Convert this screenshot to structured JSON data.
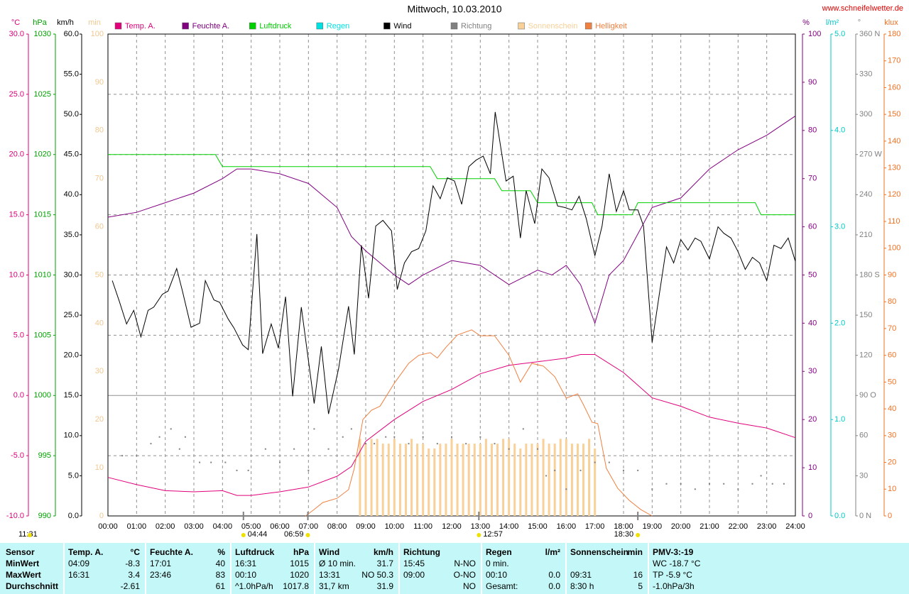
{
  "chart_data": {
    "type": "line",
    "title": "Mittwoch, 10.03.2010",
    "source": "www.schneifelwetter.de",
    "xlim": [
      0,
      24
    ],
    "xticks": [
      {
        "value": 0,
        "label": "00:00"
      },
      {
        "value": 1,
        "label": "01:00"
      },
      {
        "value": 2,
        "label": "02:00"
      },
      {
        "value": 3,
        "label": "03:00"
      },
      {
        "value": 4,
        "label": "04:00"
      },
      {
        "value": 5,
        "label": "05:00"
      },
      {
        "value": 6,
        "label": "06:00"
      },
      {
        "value": 7,
        "label": "07:00"
      },
      {
        "value": 8,
        "label": "08:00"
      },
      {
        "value": 9,
        "label": "09:00"
      },
      {
        "value": 10,
        "label": "10:00"
      },
      {
        "value": 11,
        "label": "11:00"
      },
      {
        "value": 12,
        "label": "12:00"
      },
      {
        "value": 13,
        "label": "13:00"
      },
      {
        "value": 14,
        "label": "14:00"
      },
      {
        "value": 15,
        "label": "15:00"
      },
      {
        "value": 16,
        "label": "16:00"
      },
      {
        "value": 17,
        "label": "17:00"
      },
      {
        "value": 18,
        "label": "18:00"
      },
      {
        "value": 19,
        "label": "19:00"
      },
      {
        "value": 20,
        "label": "20:00"
      },
      {
        "value": 21,
        "label": "21:00"
      },
      {
        "value": 22,
        "label": "22:00"
      },
      {
        "value": 23,
        "label": "23:00"
      },
      {
        "value": 24,
        "label": "24:00"
      }
    ],
    "grid": true,
    "axes": [
      {
        "unit": "°C",
        "color": "#e0007a",
        "lim": [
          -10,
          30
        ],
        "ticks": [
          {
            "value": -10,
            "label": "-10.0"
          },
          {
            "value": -5,
            "label": "-5.0"
          },
          {
            "value": 0,
            "label": "0.0"
          },
          {
            "value": 5,
            "label": "5.0"
          },
          {
            "value": 10,
            "label": "10.0"
          },
          {
            "value": 15,
            "label": "15.0"
          },
          {
            "value": 20,
            "label": "20.0"
          },
          {
            "value": 25,
            "label": "25.0"
          },
          {
            "value": 30,
            "label": "30.0"
          }
        ]
      },
      {
        "unit": "hPa",
        "color": "#00a000",
        "lim": [
          990,
          1030
        ],
        "ticks": [
          990,
          995,
          1000,
          1005,
          1010,
          1015,
          1020,
          1025,
          1030
        ]
      },
      {
        "unit": "km/h",
        "color": "#000000",
        "lim": [
          0,
          60
        ],
        "ticks": [
          {
            "value": 0,
            "label": "0.0"
          },
          {
            "value": 5,
            "label": "5.0"
          },
          {
            "value": 10,
            "label": "10.0"
          },
          {
            "value": 15,
            "label": "15.0"
          },
          {
            "value": 20,
            "label": "20.0"
          },
          {
            "value": 25,
            "label": "25.0"
          },
          {
            "value": 30,
            "label": "30.0"
          },
          {
            "value": 35,
            "label": "35.0"
          },
          {
            "value": 40,
            "label": "40.0"
          },
          {
            "value": 45,
            "label": "45.0"
          },
          {
            "value": 50,
            "label": "50.0"
          },
          {
            "value": 55,
            "label": "55.0"
          },
          {
            "value": 60,
            "label": "60.0"
          }
        ]
      },
      {
        "unit": "min",
        "color": "#f0c890",
        "lim": [
          0,
          100
        ],
        "ticks": [
          0,
          10,
          20,
          30,
          40,
          50,
          60,
          70,
          80,
          90,
          100
        ]
      },
      {
        "unit": "%",
        "color": "#800080",
        "lim": [
          0,
          100
        ],
        "ticks": [
          0,
          10,
          20,
          30,
          40,
          50,
          60,
          70,
          80,
          90,
          100
        ]
      },
      {
        "unit": "l/m²",
        "color": "#00c8c8",
        "lim": [
          0,
          5
        ],
        "ticks": [
          {
            "value": 0,
            "label": "0.0"
          },
          {
            "value": 1,
            "label": "1.0"
          },
          {
            "value": 2,
            "label": "2.0"
          },
          {
            "value": 3,
            "label": "3.0"
          },
          {
            "value": 4,
            "label": "4.0"
          },
          {
            "value": 5,
            "label": "5.0"
          }
        ]
      },
      {
        "unit": "°",
        "color": "#808080",
        "lim": [
          0,
          360
        ],
        "ticks": [
          {
            "value": 0,
            "label": "0 N"
          },
          30,
          60,
          {
            "value": 90,
            "label": "90 O"
          },
          120,
          150,
          {
            "value": 180,
            "label": "180 S"
          },
          210,
          240,
          {
            "value": 270,
            "label": "270 W"
          },
          300,
          330,
          {
            "value": 360,
            "label": "360 N"
          }
        ]
      },
      {
        "unit": "klux",
        "color": "#f07020",
        "lim": [
          0,
          180
        ],
        "ticks": [
          0,
          10,
          20,
          30,
          40,
          50,
          60,
          70,
          80,
          90,
          100,
          110,
          120,
          130,
          140,
          150,
          160,
          170,
          180
        ]
      }
    ],
    "series": [
      {
        "name": "Temp. A.",
        "color": "#e0007a",
        "type": "line",
        "axis": "°C",
        "x": [
          0,
          1,
          2,
          3,
          4,
          4.5,
          5,
          6,
          7,
          8,
          8.5,
          9,
          10,
          11,
          12,
          13,
          14,
          15,
          16,
          16.5,
          17,
          18,
          19,
          20,
          21,
          22,
          23,
          24
        ],
        "values": [
          -6.8,
          -7.4,
          -7.9,
          -8.0,
          -7.9,
          -8.3,
          -8.3,
          -8.0,
          -7.6,
          -6.7,
          -5.9,
          -3.8,
          -2.0,
          -0.5,
          0.5,
          1.8,
          2.5,
          2.8,
          3.1,
          3.4,
          3.4,
          1.9,
          -0.2,
          -0.9,
          -1.8,
          -2.3,
          -2.7,
          -3.5
        ]
      },
      {
        "name": "Feuchte A.",
        "color": "#800080",
        "type": "line",
        "axis": "%",
        "x": [
          0,
          1,
          2,
          3,
          4,
          4.5,
          5,
          6,
          7,
          8,
          8.5,
          9,
          10,
          10.5,
          11,
          12,
          13,
          14,
          15,
          15.5,
          16,
          16.5,
          17,
          17.5,
          18,
          19,
          20,
          21,
          22,
          23,
          24
        ],
        "values": [
          62,
          63,
          65,
          67,
          70,
          72,
          72,
          71,
          69,
          64,
          58,
          55,
          50,
          48,
          50,
          53,
          52,
          48,
          51,
          50,
          52,
          48,
          40,
          50,
          53,
          64,
          66,
          72,
          76,
          79,
          83
        ]
      },
      {
        "name": "Luftdruck",
        "color": "#00d000",
        "type": "line",
        "axis": "hPa",
        "x": [
          0,
          3.75,
          4,
          11.25,
          11.5,
          13.5,
          13.75,
          14.75,
          15,
          16.9,
          17.1,
          18.3,
          18.5,
          22.6,
          22.8,
          24
        ],
        "values": [
          1020,
          1020,
          1019,
          1019,
          1018,
          1018,
          1017,
          1017,
          1016,
          1016,
          1015,
          1015,
          1016,
          1016,
          1015,
          1015
        ]
      },
      {
        "name": "Regen",
        "color": "#00e0e0",
        "type": "line",
        "axis": "l/m²",
        "x": [],
        "values": []
      },
      {
        "name": "Wind",
        "color": "#000000",
        "type": "line",
        "axis": "km/h",
        "x": [
          0.15,
          0.4,
          0.65,
          0.9,
          1.15,
          1.4,
          1.6,
          1.9,
          2.1,
          2.4,
          2.6,
          2.9,
          3.2,
          3.4,
          3.7,
          3.9,
          4.2,
          4.4,
          4.7,
          4.9,
          5.2,
          5.4,
          5.7,
          5.95,
          6.2,
          6.45,
          6.75,
          7.2,
          7.45,
          7.7,
          8.05,
          8.4,
          8.6,
          8.85,
          9.1,
          9.35,
          9.6,
          9.9,
          10.1,
          10.35,
          10.6,
          10.85,
          11.1,
          11.35,
          11.6,
          11.85,
          12.1,
          12.35,
          12.6,
          12.85,
          13.1,
          13.35,
          13.52,
          13.9,
          14.15,
          14.4,
          14.6,
          14.9,
          15.15,
          15.4,
          15.7,
          15.95,
          16.2,
          16.45,
          16.7,
          17.0,
          17.25,
          17.5,
          17.75,
          18.0,
          18.2,
          18.5,
          18.7,
          19.0,
          19.25,
          19.5,
          19.75,
          20.0,
          20.25,
          20.5,
          20.7,
          21.0,
          21.3,
          21.5,
          21.75,
          22.0,
          22.25,
          22.5,
          22.75,
          23.0,
          23.25,
          23.5,
          23.75,
          24.0
        ],
        "values": [
          29.3,
          26.7,
          23.9,
          25.6,
          22.3,
          25.6,
          26.0,
          27.6,
          28.0,
          30.8,
          28.0,
          23.5,
          24.0,
          29.3,
          26.9,
          26.6,
          24.5,
          23.4,
          21.3,
          20.7,
          35.1,
          20.2,
          23.9,
          20.9,
          27.3,
          14.9,
          26.0,
          14.0,
          21.1,
          12.7,
          18.3,
          26.1,
          20.1,
          33.7,
          27.1,
          36.1,
          36.8,
          35.5,
          28.2,
          31.5,
          32.9,
          33.3,
          35.5,
          41.1,
          39.5,
          42.1,
          41.7,
          38.8,
          43.5,
          44.3,
          44.8,
          42.6,
          50.3,
          41.7,
          42.3,
          34.6,
          40.5,
          36.4,
          43.2,
          42.1,
          38.6,
          38.4,
          38.1,
          39.8,
          37.0,
          32.4,
          36.1,
          42.6,
          37.9,
          40.5,
          38.1,
          38.1,
          36.1,
          21.6,
          27.6,
          33.5,
          31.5,
          34.4,
          33.1,
          34.6,
          34.2,
          32.0,
          36.0,
          35.2,
          34.6,
          32.9,
          30.7,
          32.2,
          31.5,
          29.3,
          33.7,
          33.3,
          34.6,
          31.7
        ]
      },
      {
        "name": "Richtung",
        "color": "#808080",
        "type": "scatter",
        "axis": "°",
        "x": [
          0.5,
          1,
          1.5,
          1.8,
          2.2,
          2.5,
          2.7,
          3.2,
          3.6,
          4.1,
          4.5,
          4.9,
          5.5,
          6.0,
          6.5,
          7.0,
          7.2,
          7.7,
          8.2,
          8.5,
          9.0,
          9.3,
          9.7,
          10.0,
          10.5,
          11,
          11.5,
          12,
          12.5,
          13,
          13.5,
          14,
          14.5,
          15,
          15.3,
          15.6,
          16,
          16.5,
          17,
          17.5,
          18,
          18.5,
          19,
          19.5,
          20,
          20.5,
          21,
          21.5,
          22,
          22.5,
          22.8,
          23.2,
          23.6
        ],
        "values": [
          45,
          45,
          54,
          59,
          65,
          50,
          59,
          40,
          40,
          40,
          34,
          34,
          50,
          40,
          50,
          34,
          65,
          50,
          59,
          65,
          54,
          54,
          59,
          59,
          54,
          59,
          54,
          59,
          54,
          59,
          54,
          50,
          65,
          50,
          30,
          34,
          20,
          34,
          40,
          40,
          34,
          34,
          20,
          24,
          24,
          20,
          24,
          24,
          20,
          24,
          30,
          24,
          24
        ]
      },
      {
        "name": "Sonnenschein",
        "color": "#f8d098",
        "type": "bar",
        "axis": "min",
        "x": [
          8.8,
          9.0,
          9.2,
          9.4,
          9.6,
          9.8,
          10.0,
          10.2,
          10.4,
          10.6,
          10.8,
          11.0,
          11.2,
          11.4,
          11.6,
          11.8,
          12.0,
          12.2,
          12.4,
          12.6,
          12.8,
          13.0,
          13.2,
          13.4,
          13.6,
          13.8,
          14.0,
          14.2,
          14.4,
          14.6,
          14.8,
          15.0,
          15.2,
          15.4,
          15.6,
          15.8,
          16.0,
          16.2,
          16.4,
          16.6,
          16.8,
          17.0
        ],
        "values": [
          16,
          15,
          16,
          16,
          15,
          15,
          16,
          15,
          15,
          16,
          15,
          15,
          14,
          14,
          15,
          15,
          16,
          15,
          15,
          15,
          15,
          15,
          16,
          15,
          15,
          16,
          16,
          15,
          14,
          15,
          15,
          15,
          16,
          15,
          15,
          16,
          16,
          15,
          15,
          15,
          16,
          14
        ]
      },
      {
        "name": "Helligkeit",
        "color": "#f08040",
        "type": "line",
        "axis": "klux",
        "x": [
          6.9,
          7.2,
          7.5,
          8.0,
          8.4,
          8.6,
          8.9,
          9.2,
          9.5,
          10.0,
          10.5,
          10.85,
          11.25,
          11.5,
          11.8,
          12.2,
          12.7,
          13.0,
          13.5,
          14.0,
          14.4,
          14.8,
          15.2,
          15.6,
          16.0,
          16.4,
          16.6,
          16.9,
          17.1,
          17.4,
          17.8,
          18.2,
          18.6,
          19.0
        ],
        "values": [
          0,
          2.4,
          5,
          6.6,
          9.8,
          17.8,
          36,
          39.5,
          41,
          49.6,
          57,
          60,
          61,
          59,
          63,
          67.6,
          69.5,
          67.3,
          67.3,
          60,
          50,
          57,
          56,
          52,
          44,
          45.6,
          41.6,
          35,
          34.5,
          17.8,
          10.3,
          5.8,
          2.4,
          0
        ]
      }
    ],
    "annotations": [
      {
        "x": 4.73,
        "label": "04:44"
      },
      {
        "x": 6.98,
        "label": "06:59"
      },
      {
        "x": 12.95,
        "label": "12:57"
      },
      {
        "x": 18.5,
        "label": "18:30"
      }
    ],
    "note": "11:31"
  },
  "table": {
    "rows": [
      [
        [
          "Sensor",
          null
        ],
        [
          "Temp. A.",
          "°C"
        ],
        [
          "Feuchte A.",
          "%"
        ],
        [
          "Luftdruck",
          "hPa"
        ],
        [
          "Wind",
          "km/h"
        ],
        [
          "Richtung",
          null
        ],
        [
          "Regen",
          "l/m²"
        ],
        [
          "Sonnenschein",
          "min"
        ],
        [
          "PMV-3:-19",
          null
        ]
      ],
      [
        [
          "MinWert",
          null
        ],
        [
          "04:09",
          "-8.3"
        ],
        [
          "17:01",
          "40"
        ],
        [
          "16:31",
          "1015"
        ],
        [
          "Ø 10 min.",
          "31.7"
        ],
        [
          "15:45",
          "N-NO"
        ],
        [
          "0 min.",
          null
        ],
        [
          null,
          null
        ],
        [
          "WC -18.7 °C",
          null
        ]
      ],
      [
        [
          "MaxWert",
          null
        ],
        [
          "16:31",
          "3.4"
        ],
        [
          "23:46",
          "83"
        ],
        [
          "00:10",
          "1020"
        ],
        [
          "13:31",
          "NO 50.3"
        ],
        [
          "09:00",
          "O-NO"
        ],
        [
          "00:10",
          "0.0"
        ],
        [
          "09:31",
          "16"
        ],
        [
          "TP -5.9 °C",
          null
        ]
      ],
      [
        [
          "Durchschnitt",
          null
        ],
        [
          null,
          "-2.61"
        ],
        [
          null,
          "61"
        ],
        [
          "^1.0hPa/h",
          "1017.8"
        ],
        [
          "31,7 km",
          "31.9"
        ],
        [
          null,
          "NO"
        ],
        [
          "Gesamt:",
          "0.0"
        ],
        [
          "8:30 h",
          "5"
        ],
        [
          "-1.0hPa/3h",
          null
        ]
      ]
    ]
  }
}
